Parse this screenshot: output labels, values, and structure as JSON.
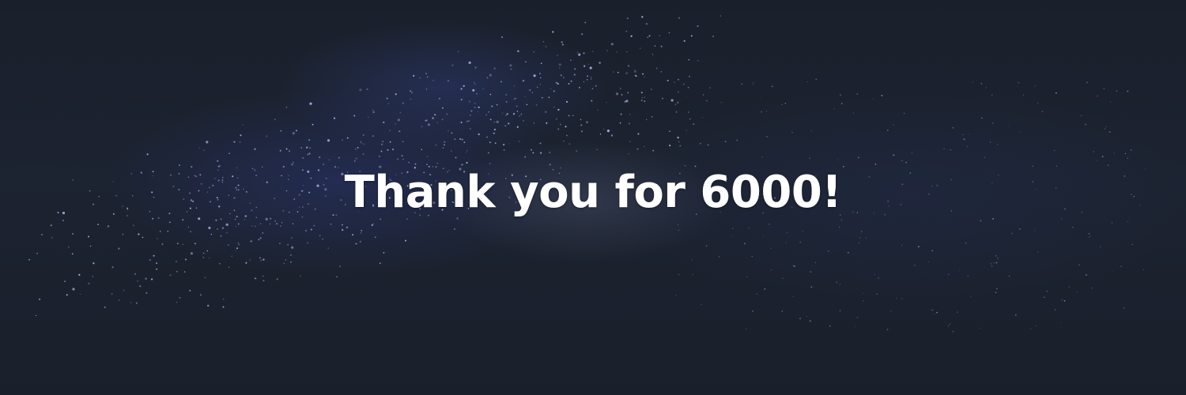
{
  "banner": {
    "headline": "Thank you for 6000!",
    "colors": {
      "background": "#1b222e",
      "text": "#ffffff",
      "star": "#b8c0ff"
    }
  }
}
